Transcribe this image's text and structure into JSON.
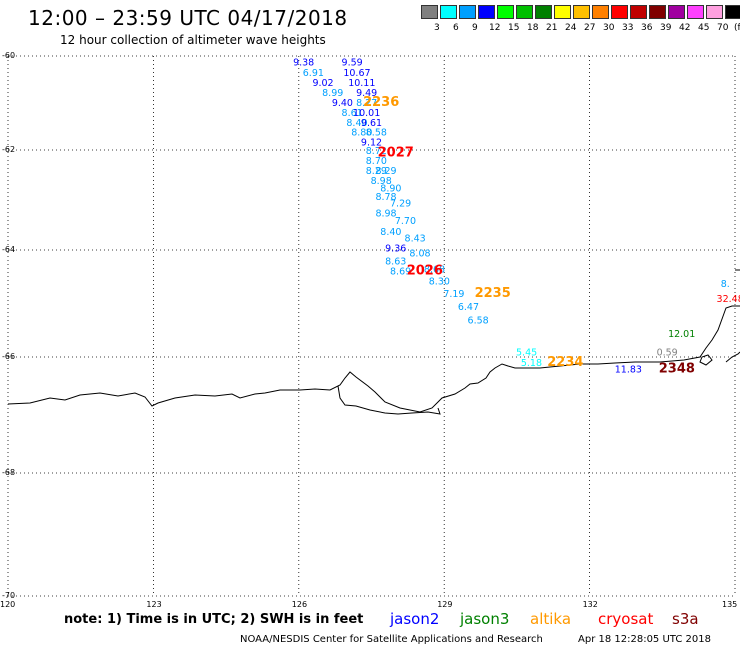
{
  "header": {
    "title": "12:00 – 23:59 UTC 04/17/2018",
    "subtitle": "12 hour collection of altimeter wave heights"
  },
  "legend": {
    "colors": [
      "#808080",
      "#00ffff",
      "#00a0ff",
      "#0000ff",
      "#00ff00",
      "#00c000",
      "#008000",
      "#ffff00",
      "#ffc000",
      "#ff8000",
      "#ff0000",
      "#c00000",
      "#800000",
      "#a000a0",
      "#ff40ff",
      "#ffa0e0",
      "#000000"
    ],
    "labels": [
      "3",
      "6",
      "9",
      "12",
      "15",
      "18",
      "21",
      "24",
      "27",
      "30",
      "33",
      "36",
      "39",
      "42",
      "45",
      "70",
      "(ft)"
    ]
  },
  "axes": {
    "y_labels": [
      "-60",
      "-62",
      "-64",
      "-66",
      "-68",
      "-70"
    ],
    "x_labels": [
      "120",
      "123",
      "126",
      "129",
      "132",
      "135"
    ]
  },
  "observations": [
    {
      "lon": 126.1,
      "lat": -60.12,
      "v": "9.38",
      "color": "#0000ff"
    },
    {
      "lon": 127.1,
      "lat": -60.12,
      "v": "9.59",
      "color": "#0000ff"
    },
    {
      "lon": 126.3,
      "lat": -60.34,
      "v": "6.91",
      "color": "#00a0ff"
    },
    {
      "lon": 127.2,
      "lat": -60.34,
      "v": "10.67",
      "color": "#0000ff"
    },
    {
      "lon": 126.5,
      "lat": -60.55,
      "v": "9.02",
      "color": "#0000ff"
    },
    {
      "lon": 127.3,
      "lat": -60.55,
      "v": "10.11",
      "color": "#0000ff"
    },
    {
      "lon": 126.7,
      "lat": -60.77,
      "v": "8.99",
      "color": "#00a0ff"
    },
    {
      "lon": 127.4,
      "lat": -60.77,
      "v": "9.49",
      "color": "#0000ff"
    },
    {
      "lon": 126.9,
      "lat": -60.98,
      "v": "9.40",
      "color": "#0000ff"
    },
    {
      "lon": 127.4,
      "lat": -60.98,
      "v": "8.27",
      "color": "#00a0ff"
    },
    {
      "lon": 127.7,
      "lat": -60.98,
      "v": "2236",
      "color": "#ff9900",
      "big": true
    },
    {
      "lon": 127.1,
      "lat": -61.19,
      "v": "8.61",
      "color": "#00a0ff"
    },
    {
      "lon": 127.4,
      "lat": -61.19,
      "v": "10.01",
      "color": "#0000ff"
    },
    {
      "lon": 127.2,
      "lat": -61.4,
      "v": "8.40",
      "color": "#00a0ff"
    },
    {
      "lon": 127.5,
      "lat": -61.4,
      "v": "9.61",
      "color": "#0000ff"
    },
    {
      "lon": 127.3,
      "lat": -61.61,
      "v": "8.80",
      "color": "#00a0ff"
    },
    {
      "lon": 127.6,
      "lat": -61.61,
      "v": "8.58",
      "color": "#00a0ff"
    },
    {
      "lon": 127.5,
      "lat": -61.82,
      "v": "9.12",
      "color": "#0000ff"
    },
    {
      "lon": 127.6,
      "lat": -62.0,
      "v": "8.72",
      "color": "#00a0ff"
    },
    {
      "lon": 128.0,
      "lat": -62.05,
      "v": "2027",
      "color": "#ff0000",
      "big": true
    },
    {
      "lon": 127.6,
      "lat": -62.2,
      "v": "8.70",
      "color": "#00a0ff"
    },
    {
      "lon": 127.6,
      "lat": -62.4,
      "v": "8.29",
      "color": "#00a0ff"
    },
    {
      "lon": 127.8,
      "lat": -62.4,
      "v": "8.29",
      "color": "#00a0ff"
    },
    {
      "lon": 127.7,
      "lat": -62.6,
      "v": "8.98",
      "color": "#00a0ff"
    },
    {
      "lon": 127.9,
      "lat": -62.75,
      "v": "8.90",
      "color": "#00a0ff"
    },
    {
      "lon": 127.8,
      "lat": -62.92,
      "v": "8.78",
      "color": "#00a0ff"
    },
    {
      "lon": 128.1,
      "lat": -63.05,
      "v": "7.29",
      "color": "#00a0ff"
    },
    {
      "lon": 127.8,
      "lat": -63.25,
      "v": "8.98",
      "color": "#00a0ff"
    },
    {
      "lon": 128.2,
      "lat": -63.4,
      "v": "7.70",
      "color": "#00a0ff"
    },
    {
      "lon": 127.9,
      "lat": -63.62,
      "v": "8.40",
      "color": "#00a0ff"
    },
    {
      "lon": 128.4,
      "lat": -63.75,
      "v": "8.43",
      "color": "#00a0ff"
    },
    {
      "lon": 128.0,
      "lat": -63.95,
      "v": "9.36",
      "color": "#0000ff"
    },
    {
      "lon": 128.5,
      "lat": -64.05,
      "v": "8.08",
      "color": "#00a0ff"
    },
    {
      "lon": 128.0,
      "lat": -64.2,
      "v": "8.63",
      "color": "#00a0ff"
    },
    {
      "lon": 128.8,
      "lat": -64.35,
      "v": "8.68",
      "color": "#00a0ff"
    },
    {
      "lon": 128.1,
      "lat": -64.38,
      "v": "8.69",
      "color": "#00a0ff"
    },
    {
      "lon": 128.6,
      "lat": -64.38,
      "v": "2026",
      "color": "#ff0000",
      "big": true
    },
    {
      "lon": 128.9,
      "lat": -64.57,
      "v": "8.30",
      "color": "#00a0ff"
    },
    {
      "lon": 129.2,
      "lat": -64.8,
      "v": "7.19",
      "color": "#00a0ff"
    },
    {
      "lon": 130.0,
      "lat": -64.8,
      "v": "2235",
      "color": "#ff9900",
      "big": true
    },
    {
      "lon": 129.5,
      "lat": -65.05,
      "v": "6.47",
      "color": "#00a0ff"
    },
    {
      "lon": 129.7,
      "lat": -65.3,
      "v": "6.58",
      "color": "#00a0ff"
    },
    {
      "lon": 134.8,
      "lat": -64.62,
      "v": "8.",
      "color": "#00a0ff"
    },
    {
      "lon": 134.9,
      "lat": -64.9,
      "v": "32.48",
      "color": "#ff0000"
    },
    {
      "lon": 133.9,
      "lat": -65.55,
      "v": "12.01",
      "color": "#008000"
    },
    {
      "lon": 133.6,
      "lat": -65.9,
      "v": "0.59",
      "color": "#808080"
    },
    {
      "lon": 130.7,
      "lat": -65.9,
      "v": "5.45",
      "color": "#00ffff"
    },
    {
      "lon": 130.8,
      "lat": -66.09,
      "v": "5.18",
      "color": "#00ffff"
    },
    {
      "lon": 131.5,
      "lat": -66.09,
      "v": "2234",
      "color": "#ff9900",
      "big": true
    },
    {
      "lon": 132.8,
      "lat": -66.2,
      "v": "11.83",
      "color": "#0000ff"
    },
    {
      "lon": 133.8,
      "lat": -66.2,
      "v": "2348",
      "color": "#800000",
      "big": true
    }
  ],
  "footer": {
    "note": "note:  1) Time is in UTC;  2) SWH is in feet",
    "satellites": [
      {
        "name": "jason2",
        "color": "#0000ff"
      },
      {
        "name": "jason3",
        "color": "#008000"
      },
      {
        "name": "altika",
        "color": "#ff9900"
      },
      {
        "name": "cryosat",
        "color": "#ff0000"
      },
      {
        "name": "s3a",
        "color": "#800000"
      }
    ],
    "credit": "NOAA/NESDIS Center for Satellite Applications and Research",
    "timestamp": "Apr 18 12:28:05 UTC 2018"
  }
}
